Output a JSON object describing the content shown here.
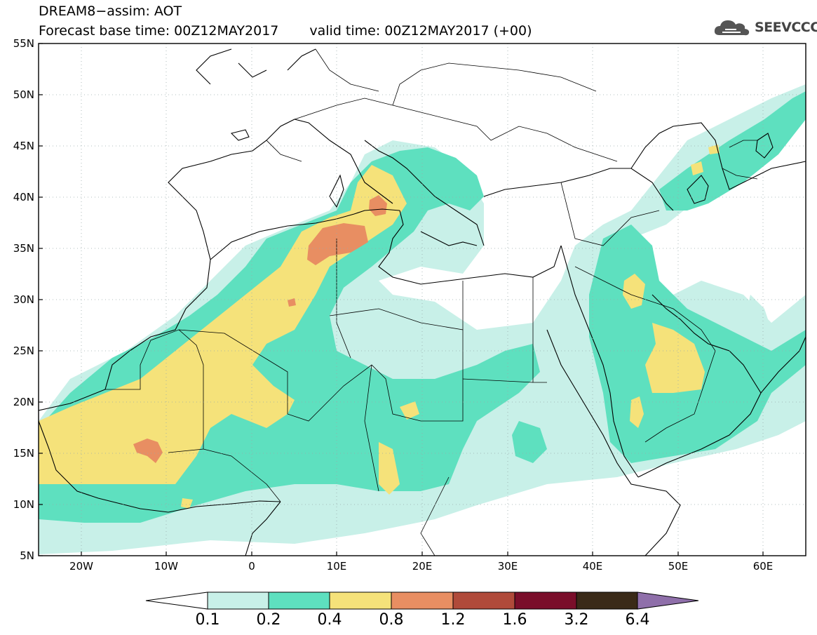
{
  "header": {
    "title": "DREAM8−assim: AOT",
    "base_time": "Forecast base time: 00Z12MAY2017",
    "valid_time": "valid time: 00Z12MAY2017 (+00)",
    "logo_text": "SEEVCCC"
  },
  "map": {
    "extent": {
      "lon": [
        -25,
        65
      ],
      "lat": [
        5,
        55
      ]
    },
    "lat_labels": [
      "55N",
      "50N",
      "45N",
      "40N",
      "35N",
      "30N",
      "25N",
      "20N",
      "15N",
      "10N",
      "5N"
    ],
    "lon_labels": [
      "20W",
      "10W",
      "0",
      "10E",
      "20E",
      "30E",
      "40E",
      "50E",
      "60E"
    ]
  },
  "legend": {
    "labels": [
      "0.1",
      "0.2",
      "0.4",
      "0.8",
      "1.2",
      "1.6",
      "3.2",
      "6.4"
    ],
    "colors": [
      "#c8f0e8",
      "#5ee0bf",
      "#f5e27a",
      "#e88e62",
      "#b04a3a",
      "#7a0e2a",
      "#3a2a18",
      "#8f6faa"
    ],
    "under_color": "#ffffff"
  }
}
